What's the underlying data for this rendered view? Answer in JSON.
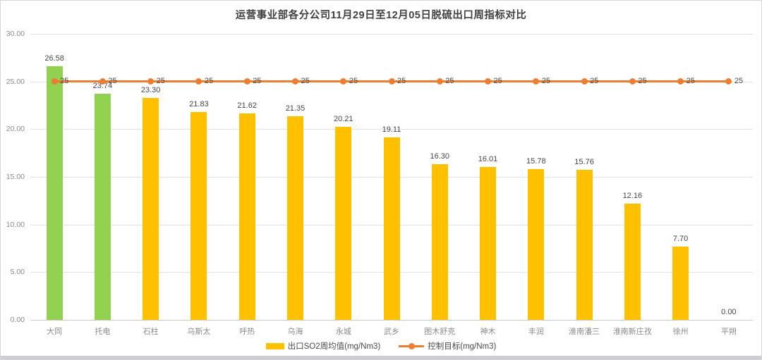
{
  "chart": {
    "title": "运营事业部各分公司11月29日至12月05日脱硫出口周指标对比",
    "legend": [
      {
        "label": "出口SO2周均值(mg/Nm3)"
      },
      {
        "label": "控制目标(mg/Nm3)"
      }
    ]
  },
  "chart_data": {
    "type": "bar",
    "title": "运营事业部各分公司11月29日至12月05日脱硫出口周指标对比",
    "categories": [
      "大同",
      "托电",
      "石柱",
      "乌斯太",
      "呼热",
      "乌海",
      "永城",
      "武乡",
      "图木舒克",
      "神木",
      "丰润",
      "淮南潘三",
      "淮南新庄孜",
      "徐州",
      "平朔"
    ],
    "series": [
      {
        "name": "出口SO2周均值(mg/Nm3)",
        "type": "bar",
        "values": [
          26.58,
          23.74,
          23.3,
          21.83,
          21.62,
          21.35,
          20.21,
          19.11,
          16.3,
          16.01,
          15.78,
          15.76,
          12.16,
          7.7,
          0.0
        ],
        "colors": [
          "#92D050",
          "#92D050",
          "#FFC000",
          "#FFC000",
          "#FFC000",
          "#FFC000",
          "#FFC000",
          "#FFC000",
          "#FFC000",
          "#FFC000",
          "#FFC000",
          "#FFC000",
          "#FFC000",
          "#FFC000",
          "#FFC000"
        ]
      },
      {
        "name": "控制目标(mg/Nm3)",
        "type": "line",
        "values": [
          25,
          25,
          25,
          25,
          25,
          25,
          25,
          25,
          25,
          25,
          25,
          25,
          25,
          25,
          25
        ],
        "point_label": "25",
        "color": "#ED7D31"
      }
    ],
    "xlabel": "",
    "ylabel": "",
    "ylim": [
      0,
      30
    ],
    "ytick_step": 5,
    "ytick_format": "0.00",
    "grid": true,
    "legend_position": "bottom",
    "colors": {
      "bar_default": "#FFC000",
      "bar_highlight": "#92D050",
      "line": "#ED7D31"
    }
  }
}
